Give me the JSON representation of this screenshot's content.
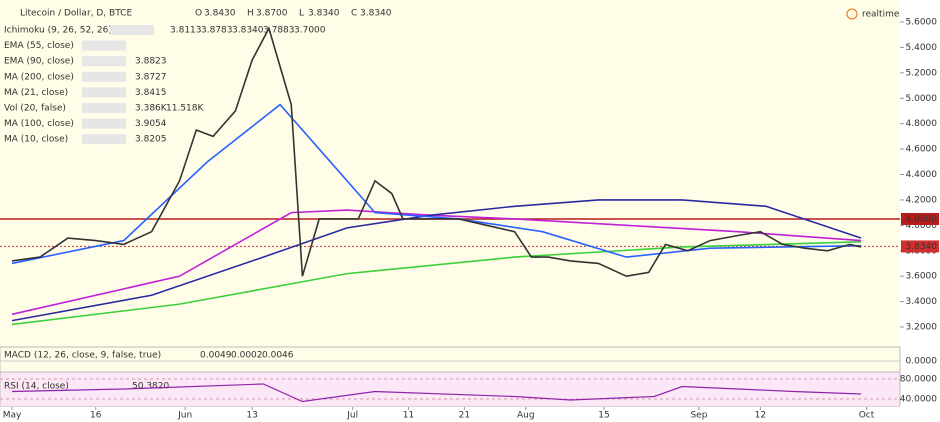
{
  "header": {
    "symbol": "Litecoin / Dollar, D, BTCE",
    "ohlc": [
      {
        "label": "O",
        "value": "3.8430"
      },
      {
        "label": "H",
        "value": "3.8700"
      },
      {
        "label": "L",
        "value": "3.8340"
      },
      {
        "label": "C",
        "value": "3.8340"
      }
    ],
    "realtime": "realtime"
  },
  "indicators": [
    {
      "name": "Ichimoku (9, 26, 52, 26)",
      "values": [
        {
          "text": "3.8113",
          "color": "#2962ff"
        },
        {
          "text": "3.8783",
          "color": "#c62828"
        },
        {
          "text": "3.8340",
          "color": "#2e7d32"
        },
        {
          "text": "3.7883",
          "color": "#333333"
        },
        {
          "text": "3.7000",
          "color": "#c62828"
        }
      ]
    },
    {
      "name": "EMA (55, close)"
    },
    {
      "name": "EMA (90, close)",
      "values": [
        {
          "text": "3.8823",
          "color": "#c020c0"
        }
      ]
    },
    {
      "name": "MA (200, close)",
      "values": [
        {
          "text": "3.8727",
          "color": "#2ea82e"
        }
      ]
    },
    {
      "name": "MA (21, close)",
      "values": [
        {
          "text": "3.8415",
          "color": "#2962ff"
        }
      ]
    },
    {
      "name": "Vol (20, false)",
      "values": [
        {
          "text": "3.386K",
          "color": "#c62828"
        },
        {
          "text": "11.518K",
          "color": "#2962ff"
        }
      ]
    },
    {
      "name": "MA (100, close)",
      "values": [
        {
          "text": "3.9054",
          "color": "#3a1fb0"
        }
      ]
    },
    {
      "name": "MA (10, close)",
      "values": [
        {
          "text": "3.8205",
          "color": "#222222"
        }
      ]
    }
  ],
  "chart_data": {
    "type": "line",
    "xlim": [
      0,
      159
    ],
    "ylim": [
      3.2,
      5.6
    ],
    "xticks": [
      {
        "value": 0,
        "label": "May"
      },
      {
        "value": 15,
        "label": "16"
      },
      {
        "value": 31,
        "label": "Jun"
      },
      {
        "value": 43,
        "label": "13"
      },
      {
        "value": 61,
        "label": "Jul"
      },
      {
        "value": 71,
        "label": "11"
      },
      {
        "value": 81,
        "label": "21"
      },
      {
        "value": 92,
        "label": "Aug"
      },
      {
        "value": 106,
        "label": "15"
      },
      {
        "value": 123,
        "label": "Sep"
      },
      {
        "value": 134,
        "label": "12"
      },
      {
        "value": 153,
        "label": "Oct"
      }
    ],
    "yticks": [
      {
        "value": 5.6,
        "label": "5.6000"
      },
      {
        "value": 5.4,
        "label": "5.4000"
      },
      {
        "value": 5.2,
        "label": "5.2000"
      },
      {
        "value": 5.0,
        "label": "5.0000"
      },
      {
        "value": 4.8,
        "label": "4.8000"
      },
      {
        "value": 4.6,
        "label": "4.6000"
      },
      {
        "value": 4.4,
        "label": "4.4000"
      },
      {
        "value": 4.2,
        "label": "4.2000"
      },
      {
        "value": 4.0,
        "label": "4.0000"
      },
      {
        "value": 3.8,
        "label": "3.8000"
      },
      {
        "value": 3.6,
        "label": "3.6000"
      },
      {
        "value": 3.4,
        "label": "3.4000"
      },
      {
        "value": 3.2,
        "label": "3.2000"
      }
    ],
    "levels": [
      {
        "value": 4.05,
        "label": "4.0500",
        "color": "#b71c1c"
      },
      {
        "value": 3.834,
        "label": "3.8340",
        "color": "#d32f2f"
      }
    ],
    "series": [
      {
        "name": "MA (200, close)",
        "color": "#3ccf3c",
        "x": [
          0,
          30,
          60,
          90,
          120,
          152
        ],
        "values": [
          3.22,
          3.38,
          3.62,
          3.75,
          3.83,
          3.87
        ]
      },
      {
        "name": "EMA (90, close)",
        "color": "#c020d8",
        "x": [
          0,
          30,
          50,
          60,
          75,
          90,
          110,
          130,
          152
        ],
        "values": [
          3.3,
          3.6,
          4.1,
          4.12,
          4.08,
          4.05,
          4.0,
          3.95,
          3.88
        ]
      },
      {
        "name": "MA (100, close)",
        "color": "#2a2aa0",
        "x": [
          0,
          25,
          45,
          60,
          75,
          90,
          105,
          120,
          135,
          152
        ],
        "values": [
          3.25,
          3.45,
          3.75,
          3.98,
          4.08,
          4.15,
          4.2,
          4.2,
          4.15,
          3.9
        ]
      },
      {
        "name": "MA (21, close)",
        "color": "#2962ff",
        "x": [
          0,
          20,
          35,
          48,
          55,
          65,
          80,
          95,
          110,
          125,
          152
        ],
        "values": [
          3.7,
          3.88,
          4.5,
          4.95,
          4.6,
          4.1,
          4.05,
          3.95,
          3.75,
          3.82,
          3.84
        ]
      },
      {
        "name": "Close",
        "color": "#333333",
        "x": [
          0,
          5,
          10,
          15,
          20,
          25,
          30,
          33,
          36,
          40,
          43,
          46,
          48,
          50,
          52,
          55,
          58,
          62,
          65,
          68,
          70,
          75,
          80,
          85,
          90,
          93,
          96,
          100,
          105,
          110,
          114,
          117,
          121,
          125,
          130,
          134,
          138,
          142,
          146,
          150,
          152
        ],
        "values": [
          3.72,
          3.75,
          3.9,
          3.88,
          3.85,
          3.95,
          4.35,
          4.75,
          4.7,
          4.9,
          5.3,
          5.55,
          5.25,
          4.95,
          3.6,
          4.05,
          4.05,
          4.05,
          4.35,
          4.25,
          4.05,
          4.05,
          4.05,
          4.0,
          3.95,
          3.75,
          3.75,
          3.72,
          3.7,
          3.6,
          3.63,
          3.85,
          3.8,
          3.88,
          3.92,
          3.95,
          3.85,
          3.82,
          3.8,
          3.85,
          3.83
        ]
      }
    ],
    "macd": {
      "title": "MACD (12, 26, close, 9, false, true)",
      "values": [
        {
          "text": "0.0049",
          "color": "#2e7d32"
        },
        {
          "text": "0.0002",
          "color": "#2962ff"
        },
        {
          "text": "0.0046",
          "color": "#ef6c00"
        }
      ],
      "zero": {
        "value": 0,
        "label": "0.0000"
      }
    },
    "rsi": {
      "title": "RSI (14, close)",
      "value": "50.3820",
      "ylim": [
        40,
        80
      ],
      "yticks": [
        {
          "value": 80,
          "label": "80.0000"
        },
        {
          "value": 40,
          "label": "40.0000"
        }
      ],
      "x": [
        0,
        20,
        45,
        52,
        65,
        90,
        100,
        115,
        120,
        140,
        152
      ],
      "values": [
        55,
        60,
        70,
        35,
        55,
        45,
        38,
        45,
        65,
        55,
        50
      ]
    }
  }
}
